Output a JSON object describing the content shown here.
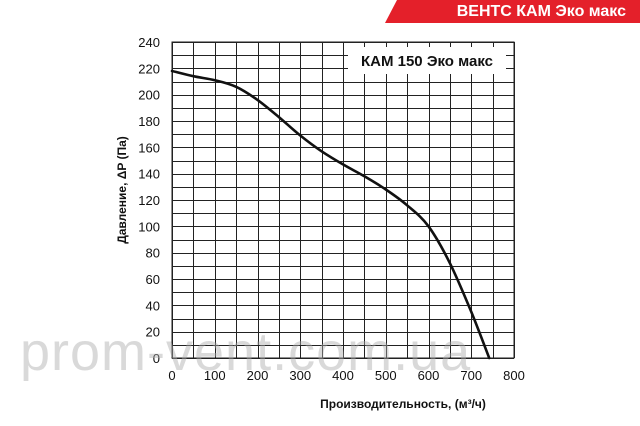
{
  "banner": {
    "title": "ВЕНТС КАМ Эко макс"
  },
  "watermark": "prom-vent.com.ua",
  "chart_data": {
    "type": "line",
    "legend": "КАМ 150 Эко макс",
    "xlabel": "Производительность, (м³/ч)",
    "ylabel": "Давление, ΔP (Па)",
    "xlim": [
      0,
      800
    ],
    "ylim": [
      0,
      240
    ],
    "xticks": [
      0,
      100,
      200,
      300,
      400,
      500,
      600,
      700,
      800
    ],
    "yticks": [
      0,
      20,
      40,
      60,
      80,
      100,
      120,
      140,
      160,
      180,
      200,
      220,
      240
    ],
    "x_minor_step": 50,
    "y_minor_step": 10,
    "grid": true,
    "legend_position": "top-right",
    "series": [
      {
        "name": "КАМ 150 Эко макс",
        "x": [
          0,
          50,
          100,
          150,
          200,
          250,
          300,
          350,
          400,
          450,
          500,
          550,
          600,
          650,
          700,
          742
        ],
        "y": [
          218,
          214,
          211,
          206,
          196,
          183,
          169,
          157,
          147,
          138,
          128,
          116,
          100,
          72,
          35,
          0
        ]
      }
    ],
    "colors": {
      "line": "#111111",
      "grid": "#222222",
      "banner": "#e4202a"
    }
  }
}
